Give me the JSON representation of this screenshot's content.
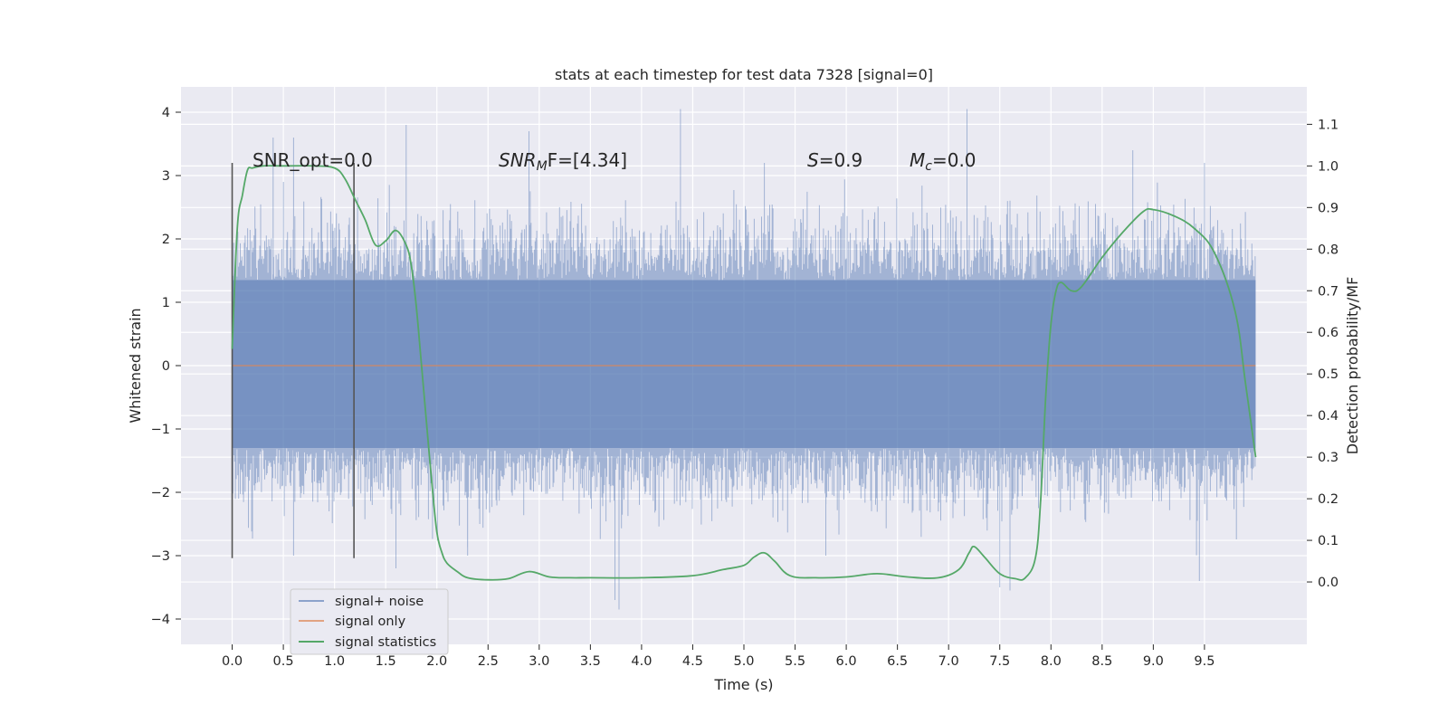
{
  "chart_data": {
    "type": "line",
    "title": "stats at each timestep for test data 7328 [signal=0]",
    "xlabel": "Time (s)",
    "ylabel": "Whitened strain",
    "y2label": "Detection probability/MF",
    "xlim": [
      -0.5,
      10.5
    ],
    "ylim": [
      -4.4,
      4.4
    ],
    "y2lim": [
      -0.15,
      1.19
    ],
    "x_ticks": [
      "0.0",
      "0.5",
      "1.0",
      "1.5",
      "2.0",
      "2.5",
      "3.0",
      "3.5",
      "4.0",
      "4.5",
      "5.0",
      "5.5",
      "6.0",
      "6.5",
      "7.0",
      "7.5",
      "8.0",
      "8.5",
      "9.0",
      "9.5"
    ],
    "y_ticks": [
      "4",
      "3",
      "2",
      "1",
      "0",
      "−1",
      "−2",
      "−3",
      "−4"
    ],
    "y2_ticks": [
      "1.1",
      "1.0",
      "0.9",
      "0.8",
      "0.7",
      "0.6",
      "0.5",
      "0.4",
      "0.3",
      "0.2",
      "0.1",
      "0.0"
    ],
    "grid": true,
    "legend_placement": "lower-left",
    "legend": [
      "signal+ noise",
      "signal only",
      "signal statistics"
    ],
    "annotations": {
      "snr_opt": "SNR_opt=0.0",
      "snr_mf_base": "SNR",
      "snr_mf_sub": "M",
      "snr_mf_rest": "F=[4.34]",
      "s_sym": "S",
      "s_val": "=0.9",
      "mc_sym": "M",
      "mc_sub": "c",
      "mc_val": "=0.0"
    },
    "vlines": {
      "x": [
        0.0,
        1.19
      ],
      "ymin": -3.04,
      "ymax": 3.2
    },
    "colors": {
      "noise": "#4c72b0",
      "signal": "#dd8452",
      "stats": "#55a868",
      "vline": "#555555",
      "bg": "#eaeaf2"
    },
    "series": [
      {
        "name": "signal+ noise",
        "axis": "left",
        "style": "dense-noise",
        "x_range": [
          0.0,
          10.0
        ],
        "core_band": [
          -1.3,
          1.35
        ],
        "peaks_up": [
          {
            "x": 0.4,
            "y": 3.6
          },
          {
            "x": 1.7,
            "y": 3.8
          },
          {
            "x": 2.9,
            "y": 3.7
          },
          {
            "x": 4.38,
            "y": 4.05
          },
          {
            "x": 7.18,
            "y": 4.05
          },
          {
            "x": 5.2,
            "y": 3.2
          },
          {
            "x": 8.8,
            "y": 3.4
          },
          {
            "x": 9.5,
            "y": 3.2
          },
          {
            "x": 0.6,
            "y": 3.6
          }
        ],
        "peaks_down": [
          {
            "x": 0.6,
            "y": -3.0
          },
          {
            "x": 1.6,
            "y": -3.2
          },
          {
            "x": 2.3,
            "y": -3.0
          },
          {
            "x": 3.78,
            "y": -3.85
          },
          {
            "x": 3.74,
            "y": -3.7
          },
          {
            "x": 5.8,
            "y": -3.0
          },
          {
            "x": 7.5,
            "y": -3.5
          },
          {
            "x": 7.6,
            "y": -3.55
          },
          {
            "x": 9.45,
            "y": -3.4
          }
        ]
      },
      {
        "name": "signal only",
        "axis": "left",
        "x": [
          0.0,
          10.0
        ],
        "y": [
          0.0,
          0.0
        ]
      },
      {
        "name": "signal statistics",
        "axis": "right",
        "x": [
          0.0,
          0.05,
          0.1,
          0.15,
          0.2,
          0.3,
          0.5,
          0.8,
          1.0,
          1.1,
          1.2,
          1.3,
          1.4,
          1.5,
          1.6,
          1.7,
          1.75,
          1.8,
          1.85,
          1.9,
          1.95,
          2.0,
          2.05,
          2.1,
          2.2,
          2.3,
          2.5,
          2.7,
          2.9,
          3.1,
          3.3,
          3.5,
          4.0,
          4.5,
          4.8,
          5.0,
          5.1,
          5.2,
          5.3,
          5.45,
          5.7,
          6.0,
          6.3,
          6.6,
          6.9,
          7.1,
          7.2,
          7.25,
          7.35,
          7.5,
          7.65,
          7.75,
          7.85,
          7.9,
          7.95,
          8.0,
          8.05,
          8.1,
          8.2,
          8.3,
          8.5,
          8.7,
          8.9,
          9.0,
          9.2,
          9.4,
          9.6,
          9.8,
          9.9,
          10.0
        ],
        "y": [
          0.56,
          0.85,
          0.93,
          0.99,
          0.995,
          1.0,
          1.0,
          1.0,
          0.995,
          0.97,
          0.92,
          0.87,
          0.81,
          0.82,
          0.845,
          0.81,
          0.76,
          0.66,
          0.52,
          0.38,
          0.24,
          0.12,
          0.07,
          0.045,
          0.025,
          0.01,
          0.005,
          0.008,
          0.025,
          0.012,
          0.01,
          0.01,
          0.01,
          0.015,
          0.03,
          0.04,
          0.06,
          0.07,
          0.05,
          0.015,
          0.01,
          0.012,
          0.02,
          0.012,
          0.01,
          0.03,
          0.07,
          0.085,
          0.06,
          0.02,
          0.008,
          0.01,
          0.06,
          0.2,
          0.45,
          0.62,
          0.7,
          0.72,
          0.7,
          0.71,
          0.78,
          0.84,
          0.89,
          0.895,
          0.88,
          0.85,
          0.79,
          0.65,
          0.48,
          0.3
        ]
      }
    ]
  }
}
